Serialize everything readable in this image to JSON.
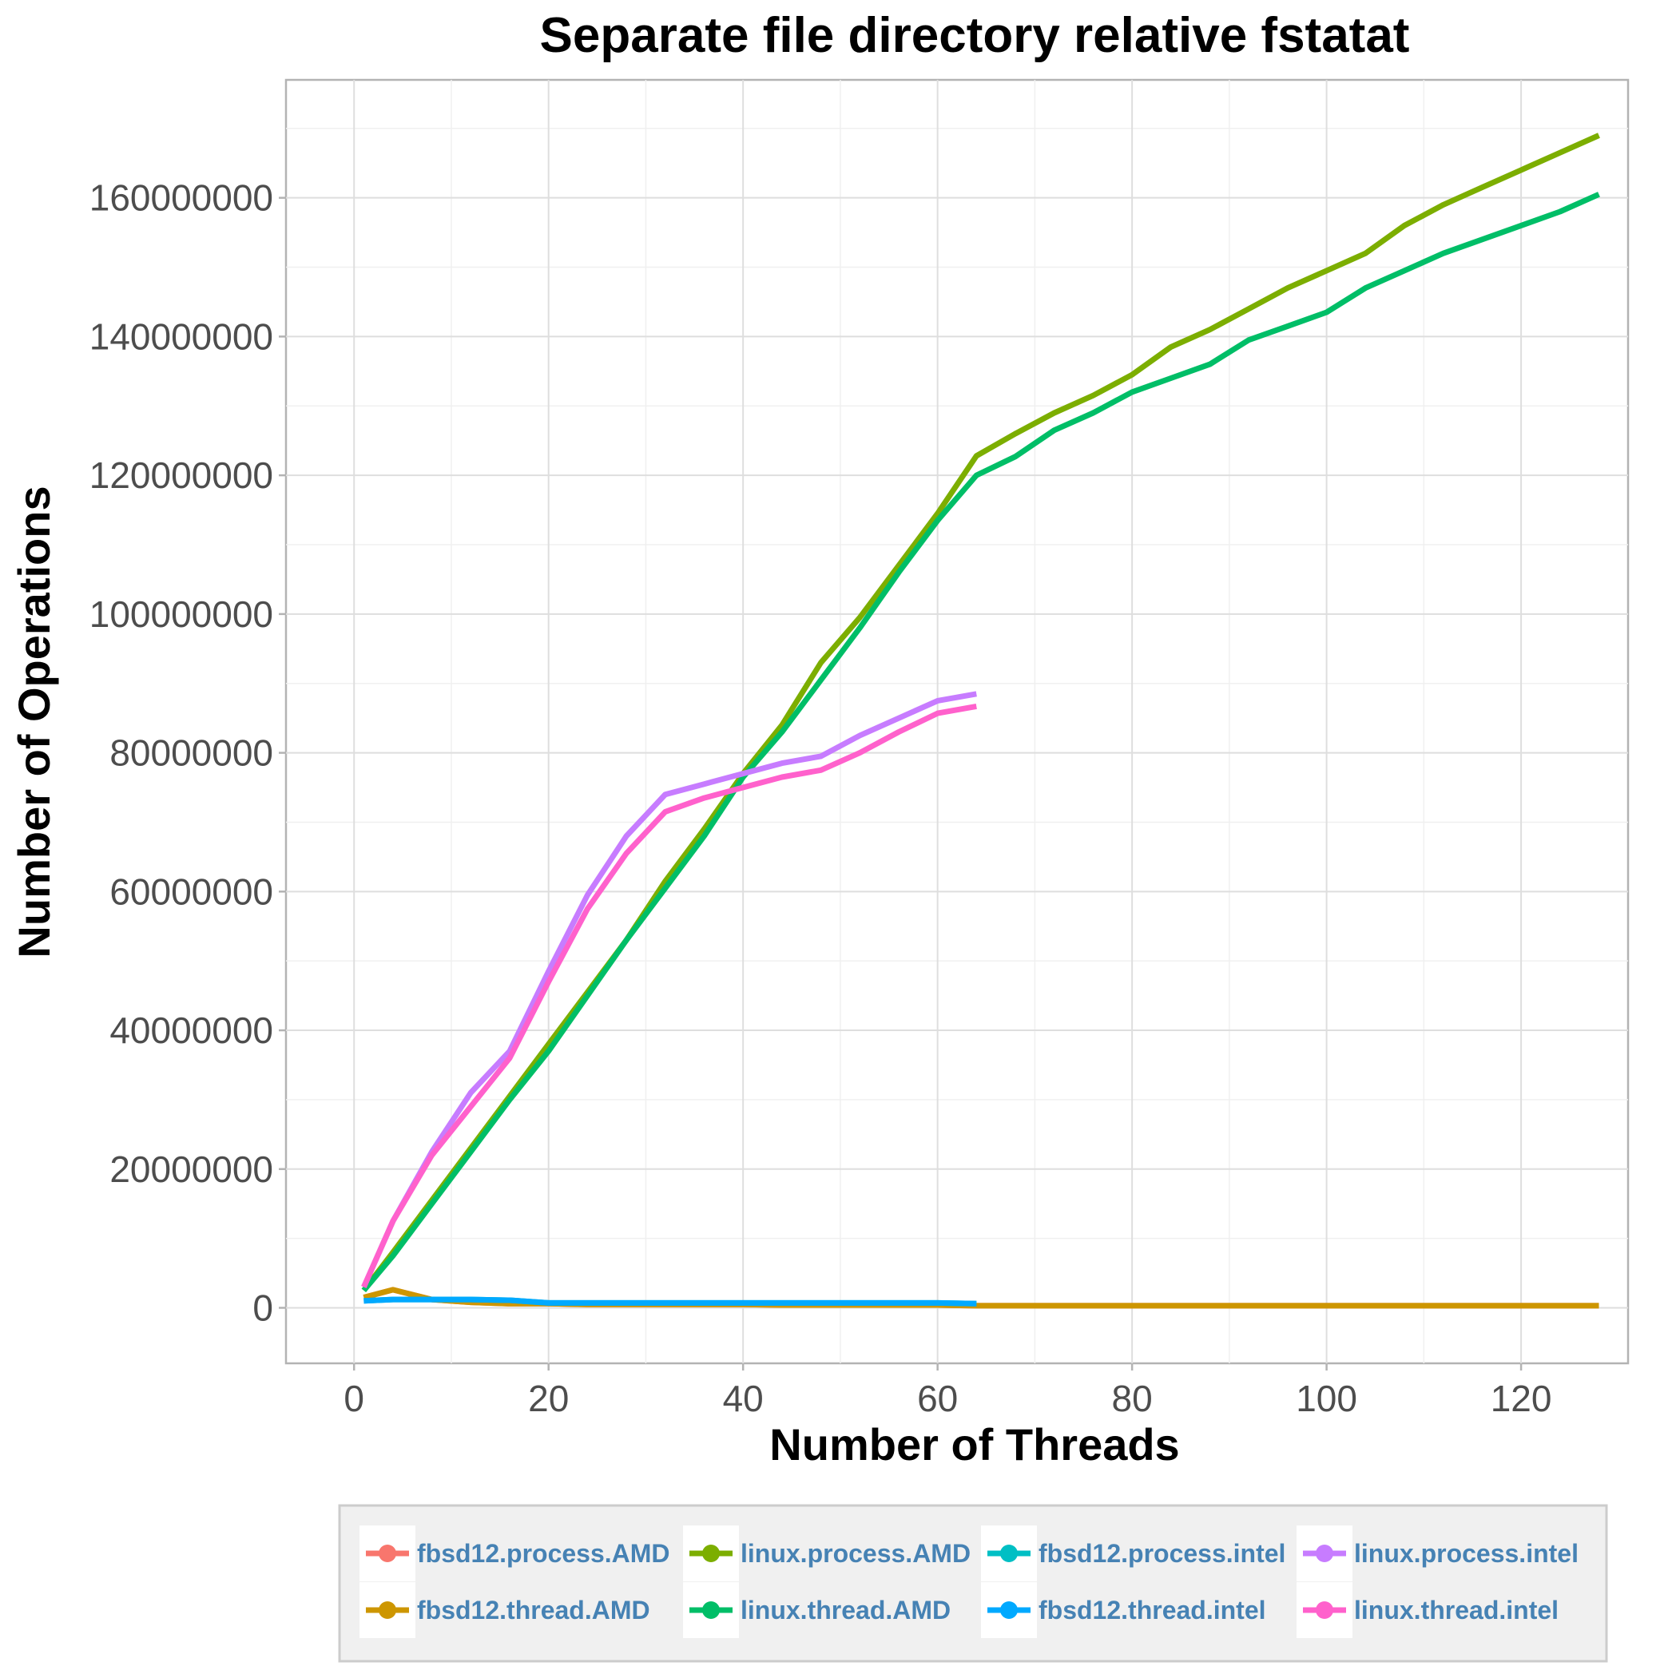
{
  "chart_data": {
    "type": "line",
    "title": "Separate file directory relative fstatat",
    "xlabel": "Number of Threads",
    "ylabel": "Number of Operations",
    "xlim": [
      -7,
      131
    ],
    "ylim": [
      -8000000,
      177000000
    ],
    "xticks": [
      0,
      20,
      40,
      60,
      80,
      100,
      120
    ],
    "xtick_labels": [
      "0",
      "20",
      "40",
      "60",
      "80",
      "100",
      "120"
    ],
    "yticks": [
      0,
      20000000,
      40000000,
      60000000,
      80000000,
      100000000,
      120000000,
      140000000,
      160000000
    ],
    "ytick_labels": [
      "0",
      "20000000",
      "40000000",
      "60000000",
      "80000000",
      "100000000",
      "120000000",
      "140000000",
      "160000000"
    ],
    "grid": true,
    "legend_position": "bottom",
    "series": [
      {
        "name": "fbsd12.process.AMD",
        "color": "#F8766D",
        "x": [
          1,
          4,
          8,
          12,
          16,
          20,
          24,
          28,
          32,
          36,
          40,
          44,
          48,
          52,
          56,
          60,
          64,
          68,
          72,
          76,
          80,
          84,
          88,
          92,
          96,
          100,
          104,
          108,
          112,
          116,
          120,
          124,
          128
        ],
        "y": [
          1500000,
          2600000,
          1200000,
          800000,
          600000,
          600000,
          500000,
          500000,
          500000,
          500000,
          500000,
          400000,
          400000,
          400000,
          400000,
          400000,
          300000,
          300000,
          300000,
          300000,
          300000,
          300000,
          300000,
          300000,
          300000,
          300000,
          300000,
          300000,
          300000,
          300000,
          300000,
          300000,
          300000
        ]
      },
      {
        "name": "fbsd12.thread.AMD",
        "color": "#CD9600",
        "x": [
          1,
          4,
          8,
          12,
          16,
          20,
          24,
          28,
          32,
          36,
          40,
          44,
          48,
          52,
          56,
          60,
          64,
          68,
          72,
          76,
          80,
          84,
          88,
          92,
          96,
          100,
          104,
          108,
          112,
          116,
          120,
          124,
          128
        ],
        "y": [
          1500000,
          2600000,
          1200000,
          800000,
          600000,
          600000,
          500000,
          500000,
          500000,
          500000,
          500000,
          400000,
          400000,
          400000,
          400000,
          400000,
          300000,
          300000,
          300000,
          300000,
          300000,
          300000,
          300000,
          300000,
          300000,
          300000,
          300000,
          300000,
          300000,
          300000,
          300000,
          300000,
          300000
        ]
      },
      {
        "name": "linux.process.AMD",
        "color": "#7CAE00",
        "x": [
          1,
          4,
          8,
          12,
          16,
          20,
          24,
          28,
          32,
          36,
          40,
          44,
          48,
          52,
          56,
          60,
          64,
          68,
          72,
          76,
          80,
          84,
          88,
          92,
          96,
          100,
          104,
          108,
          112,
          116,
          120,
          124,
          128
        ],
        "y": [
          2500000,
          8000000,
          15500000,
          23000000,
          30500000,
          38000000,
          45500000,
          53000000,
          61500000,
          69000000,
          77000000,
          84000000,
          93000000,
          99500000,
          107000000,
          114500000,
          122800000,
          126000000,
          129000000,
          131500000,
          134500000,
          138500000,
          141000000,
          144000000,
          147000000,
          149500000,
          152000000,
          156000000,
          159000000,
          161500000,
          164000000,
          166500000,
          169000000
        ]
      },
      {
        "name": "linux.thread.AMD",
        "color": "#00BE67",
        "x": [
          1,
          4,
          8,
          12,
          16,
          20,
          24,
          28,
          32,
          36,
          40,
          44,
          48,
          52,
          56,
          60,
          64,
          68,
          72,
          76,
          80,
          84,
          88,
          92,
          96,
          100,
          104,
          108,
          112,
          116,
          120,
          124,
          128
        ],
        "y": [
          2500000,
          7500000,
          15000000,
          22500000,
          30000000,
          37000000,
          45000000,
          53000000,
          60500000,
          68000000,
          76500000,
          83000000,
          90500000,
          98000000,
          106000000,
          113500000,
          120000000,
          122700000,
          126500000,
          129000000,
          132000000,
          134000000,
          136000000,
          139500000,
          141500000,
          143500000,
          147000000,
          149500000,
          152000000,
          154000000,
          156000000,
          158000000,
          160500000
        ]
      },
      {
        "name": "fbsd12.process.intel",
        "color": "#00BFC4",
        "x": [
          1,
          4,
          8,
          12,
          16,
          20,
          24,
          28,
          32,
          36,
          40,
          44,
          48,
          52,
          56,
          60,
          64
        ],
        "y": [
          1000000,
          1200000,
          1200000,
          1200000,
          1100000,
          700000,
          700000,
          700000,
          700000,
          700000,
          700000,
          700000,
          700000,
          700000,
          700000,
          700000,
          600000
        ]
      },
      {
        "name": "fbsd12.thread.intel",
        "color": "#00A9FF",
        "x": [
          1,
          4,
          8,
          12,
          16,
          20,
          24,
          28,
          32,
          36,
          40,
          44,
          48,
          52,
          56,
          60,
          64
        ],
        "y": [
          1000000,
          1200000,
          1200000,
          1200000,
          1100000,
          700000,
          700000,
          700000,
          700000,
          700000,
          700000,
          700000,
          700000,
          700000,
          700000,
          700000,
          600000
        ]
      },
      {
        "name": "linux.process.intel",
        "color": "#C77CFF",
        "x": [
          1,
          4,
          8,
          12,
          16,
          20,
          24,
          28,
          32,
          36,
          40,
          44,
          48,
          52,
          56,
          60,
          64
        ],
        "y": [
          3000000,
          12500000,
          22500000,
          31000000,
          37000000,
          48500000,
          59500000,
          68000000,
          74000000,
          75500000,
          77000000,
          78500000,
          79500000,
          82500000,
          85000000,
          87500000,
          88500000
        ]
      },
      {
        "name": "linux.thread.intel",
        "color": "#FF61CC",
        "x": [
          1,
          4,
          8,
          12,
          16,
          20,
          24,
          28,
          32,
          36,
          40,
          44,
          48,
          52,
          56,
          60,
          64
        ],
        "y": [
          3000000,
          12500000,
          22000000,
          29000000,
          36000000,
          47000000,
          57500000,
          65500000,
          71500000,
          73500000,
          75000000,
          76500000,
          77500000,
          80000000,
          83000000,
          85700000,
          86700000
        ]
      }
    ]
  }
}
